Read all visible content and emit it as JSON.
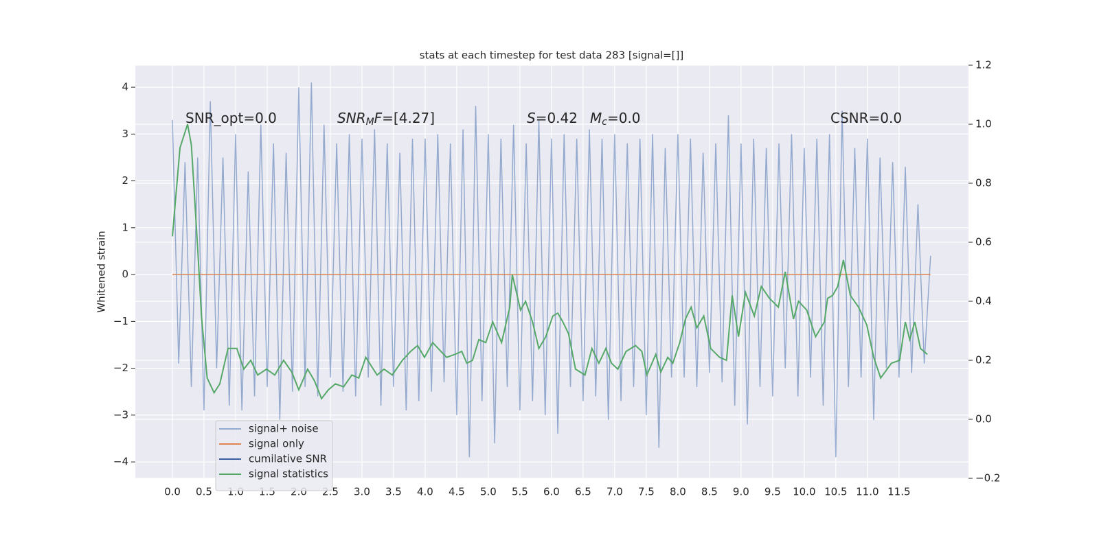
{
  "chart_data": {
    "type": "line",
    "title": "stats at each timestep for test data 283 [signal=[]]",
    "y_label": "Whitened strain",
    "grid": true,
    "legend": "lower left",
    "xlim": [
      -0.587,
      12.6
    ],
    "ylim": [
      -4.35,
      4.47
    ],
    "y2lim": [
      -0.2,
      1.2
    ],
    "xticks": [
      {
        "value": 0,
        "label": "0.0"
      },
      0.5,
      {
        "value": 1,
        "label": "1.0"
      },
      1.5,
      {
        "value": 2,
        "label": "2.0"
      },
      2.5,
      {
        "value": 3,
        "label": "3.0"
      },
      3.5,
      {
        "value": 4,
        "label": "4.0"
      },
      4.5,
      {
        "value": 5,
        "label": "5.0"
      },
      5.5,
      {
        "value": 6,
        "label": "6.0"
      },
      6.5,
      {
        "value": 7,
        "label": "7.0"
      },
      7.5,
      {
        "value": 8,
        "label": "8.0"
      },
      8.5,
      {
        "value": 9,
        "label": "9.0"
      },
      9.5,
      {
        "value": 10,
        "label": "10.0"
      },
      10.5,
      {
        "value": 11,
        "label": "11.0"
      },
      11.5
    ],
    "yticks": [
      {
        "value": -4,
        "label": "−4"
      },
      {
        "value": -3,
        "label": "−3"
      },
      {
        "value": -2,
        "label": "−2"
      },
      {
        "value": -1,
        "label": "−1"
      },
      0,
      1,
      2,
      3,
      4
    ],
    "y2ticks": [
      {
        "value": -0.2,
        "label": "−0.2"
      },
      {
        "value": 0,
        "label": "0.0"
      },
      0.2,
      0.4,
      0.6,
      0.8,
      {
        "value": 1,
        "label": "1.0"
      },
      1.2
    ],
    "annotations": [
      [
        {
          "text": "SNR_opt=0.0"
        }
      ],
      [
        {
          "text": "SNR",
          "style": "italic"
        },
        {
          "text": "M",
          "style": "sub"
        },
        {
          "text": "F",
          "style": "italic"
        },
        {
          "text": "=[4.27]"
        }
      ],
      [
        {
          "text": "S",
          "style": "italic"
        },
        {
          "text": "=0.42"
        }
      ],
      [
        {
          "text": "M",
          "style": "italic"
        },
        {
          "text": "c",
          "style": "sub"
        },
        {
          "text": "=0.0"
        }
      ],
      [
        {
          "text": "CSNR=0.0"
        }
      ]
    ],
    "series": [
      {
        "name": "signal+ noise",
        "color": "#4c72b0",
        "opacity": 0.55,
        "x": [
          0.0,
          0.1,
          0.2,
          0.3,
          0.4,
          0.5,
          0.6,
          0.7,
          0.8,
          0.9,
          1.0,
          1.1,
          1.2,
          1.3,
          1.4,
          1.5,
          1.6,
          1.7,
          1.8,
          1.9,
          2.0,
          2.1,
          2.2,
          2.3,
          2.4,
          2.5,
          2.6,
          2.7,
          2.8,
          2.9,
          3.0,
          3.1,
          3.2,
          3.3,
          3.4,
          3.5,
          3.6,
          3.7,
          3.8,
          3.9,
          4.0,
          4.1,
          4.2,
          4.3,
          4.4,
          4.5,
          4.6,
          4.7,
          4.8,
          4.9,
          5.0,
          5.1,
          5.2,
          5.3,
          5.4,
          5.5,
          5.6,
          5.7,
          5.8,
          5.9,
          6.0,
          6.1,
          6.2,
          6.3,
          6.4,
          6.5,
          6.6,
          6.7,
          6.8,
          6.9,
          7.0,
          7.1,
          7.2,
          7.3,
          7.4,
          7.5,
          7.6,
          7.7,
          7.8,
          7.9,
          8.0,
          8.1,
          8.2,
          8.3,
          8.4,
          8.5,
          8.6,
          8.7,
          8.8,
          8.9,
          9.0,
          9.1,
          9.2,
          9.3,
          9.4,
          9.5,
          9.6,
          9.7,
          9.8,
          9.9,
          10.0,
          10.1,
          10.2,
          10.3,
          10.4,
          10.5,
          10.6,
          10.7,
          10.8,
          10.9,
          11.0,
          11.1,
          11.2,
          11.3,
          11.4,
          11.5,
          11.6,
          11.7,
          11.8,
          11.9,
          12.0
        ],
        "values": [
          3.3,
          -1.9,
          2.4,
          -2.4,
          2.5,
          -2.9,
          3.7,
          -2.0,
          2.5,
          -2.8,
          3.0,
          -2.9,
          2.2,
          -2.6,
          3.2,
          -2.4,
          2.8,
          -3.1,
          2.6,
          -2.5,
          4.0,
          -2.4,
          4.1,
          -2.6,
          3.2,
          -2.2,
          2.8,
          -2.5,
          3.0,
          -2.6,
          2.9,
          -2.2,
          3.1,
          -2.8,
          2.8,
          -2.4,
          2.6,
          -2.9,
          2.9,
          -2.7,
          2.9,
          -2.5,
          3.0,
          -2.3,
          2.8,
          -3.0,
          3.1,
          -3.9,
          3.6,
          -2.7,
          3.0,
          -3.6,
          2.9,
          -2.4,
          3.2,
          -2.9,
          2.8,
          -2.7,
          3.3,
          -3.0,
          2.9,
          -3.4,
          3.0,
          -2.4,
          2.9,
          -2.7,
          3.1,
          -2.6,
          2.9,
          -3.1,
          3.0,
          -2.7,
          2.8,
          -2.4,
          2.9,
          -3.0,
          3.0,
          -3.7,
          2.7,
          -2.2,
          3.0,
          -2.2,
          2.9,
          -2.4,
          2.6,
          -2.1,
          2.8,
          -2.3,
          3.4,
          -2.8,
          2.8,
          -3.2,
          2.9,
          -2.4,
          2.7,
          -2.6,
          2.8,
          -2.0,
          3.0,
          -2.6,
          2.7,
          -2.2,
          2.9,
          -2.8,
          3.0,
          -3.9,
          3.5,
          -2.4,
          2.7,
          -2.2,
          2.9,
          -3.1,
          2.5,
          -2.0,
          2.4,
          -2.2,
          2.3,
          -2.1,
          1.5,
          -1.9,
          0.4
        ]
      },
      {
        "name": "signal only",
        "color": "#dd8452",
        "x": [
          0.0,
          12.0
        ],
        "values": [
          0,
          0
        ]
      },
      {
        "name": "cumilative SNR",
        "color": "#3a5da0",
        "x": [],
        "values": []
      },
      {
        "name": "signal statistics",
        "color": "#55a868",
        "axis": "y2",
        "x": [
          0,
          0.12,
          0.24,
          0.3,
          0.4,
          0.46,
          0.55,
          0.66,
          0.75,
          0.88,
          1.02,
          1.13,
          1.24,
          1.35,
          1.49,
          1.62,
          1.76,
          1.89,
          2.0,
          2.14,
          2.25,
          2.36,
          2.47,
          2.58,
          2.71,
          2.84,
          2.95,
          3.06,
          3.24,
          3.35,
          3.48,
          3.64,
          3.77,
          3.88,
          3.99,
          4.12,
          4.25,
          4.34,
          4.47,
          4.58,
          4.66,
          4.75,
          4.85,
          4.96,
          5.07,
          5.21,
          5.34,
          5.38,
          5.51,
          5.59,
          5.7,
          5.8,
          5.91,
          6.02,
          6.1,
          6.18,
          6.27,
          6.38,
          6.53,
          6.64,
          6.75,
          6.86,
          6.95,
          7.05,
          7.18,
          7.33,
          7.43,
          7.51,
          7.65,
          7.73,
          7.84,
          7.92,
          8.03,
          8.12,
          8.21,
          8.3,
          8.41,
          8.52,
          8.66,
          8.77,
          8.86,
          8.96,
          9.07,
          9.21,
          9.32,
          9.45,
          9.59,
          9.7,
          9.83,
          9.91,
          10.04,
          10.18,
          10.32,
          10.37,
          10.45,
          10.53,
          10.62,
          10.73,
          10.86,
          10.99,
          11.1,
          11.21,
          11.38,
          11.51,
          11.6,
          11.67,
          11.75,
          11.84,
          11.95
        ],
        "values": [
          0.62,
          0.92,
          1.0,
          0.93,
          0.58,
          0.35,
          0.14,
          0.09,
          0.12,
          0.24,
          0.24,
          0.17,
          0.2,
          0.15,
          0.17,
          0.15,
          0.2,
          0.16,
          0.1,
          0.17,
          0.13,
          0.07,
          0.1,
          0.12,
          0.11,
          0.15,
          0.14,
          0.21,
          0.15,
          0.17,
          0.15,
          0.2,
          0.23,
          0.25,
          0.21,
          0.26,
          0.23,
          0.21,
          0.22,
          0.23,
          0.19,
          0.2,
          0.27,
          0.26,
          0.33,
          0.26,
          0.38,
          0.49,
          0.37,
          0.4,
          0.33,
          0.24,
          0.28,
          0.35,
          0.36,
          0.33,
          0.29,
          0.17,
          0.15,
          0.24,
          0.19,
          0.24,
          0.19,
          0.17,
          0.23,
          0.25,
          0.23,
          0.15,
          0.22,
          0.16,
          0.21,
          0.19,
          0.26,
          0.34,
          0.38,
          0.31,
          0.35,
          0.24,
          0.21,
          0.2,
          0.42,
          0.28,
          0.43,
          0.35,
          0.45,
          0.41,
          0.38,
          0.5,
          0.34,
          0.4,
          0.37,
          0.28,
          0.33,
          0.41,
          0.42,
          0.45,
          0.54,
          0.42,
          0.38,
          0.32,
          0.21,
          0.14,
          0.19,
          0.2,
          0.33,
          0.27,
          0.33,
          0.24,
          0.22
        ]
      }
    ]
  }
}
